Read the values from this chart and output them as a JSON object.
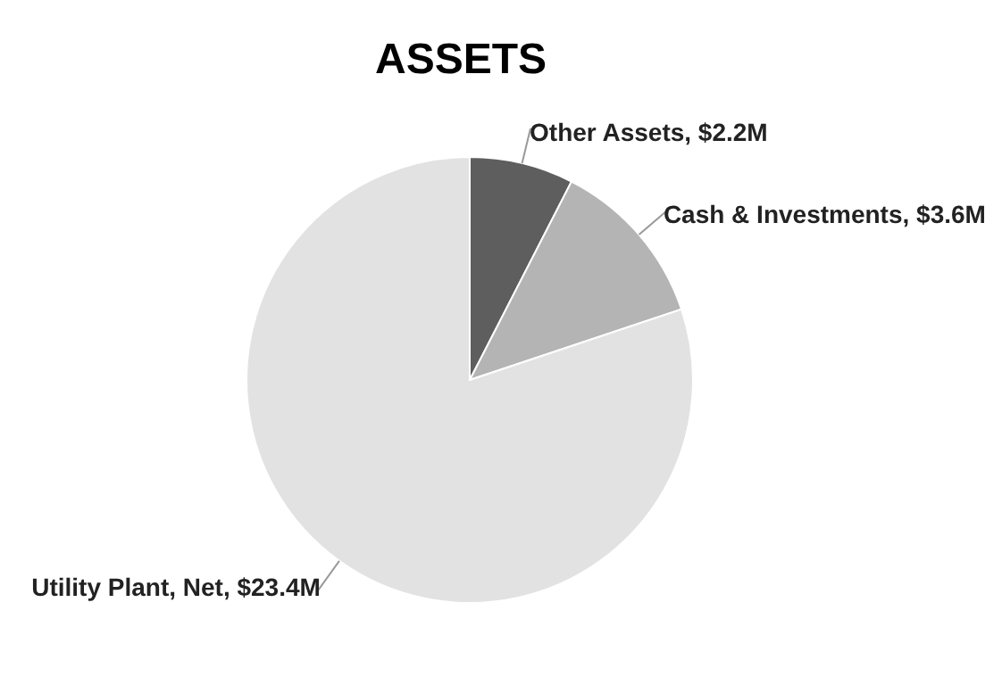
{
  "chart_data": {
    "type": "pie",
    "title": "ASSETS",
    "categories": [
      "Other Assets",
      "Cash & Investments",
      "Utility Plant, Net"
    ],
    "values": [
      2.2,
      3.6,
      23.4
    ],
    "value_labels": [
      "$2.2M",
      "$3.6M",
      "$23.4M"
    ],
    "colors": [
      "#5e5e5e",
      "#b4b4b4",
      "#e2e2e2"
    ]
  }
}
